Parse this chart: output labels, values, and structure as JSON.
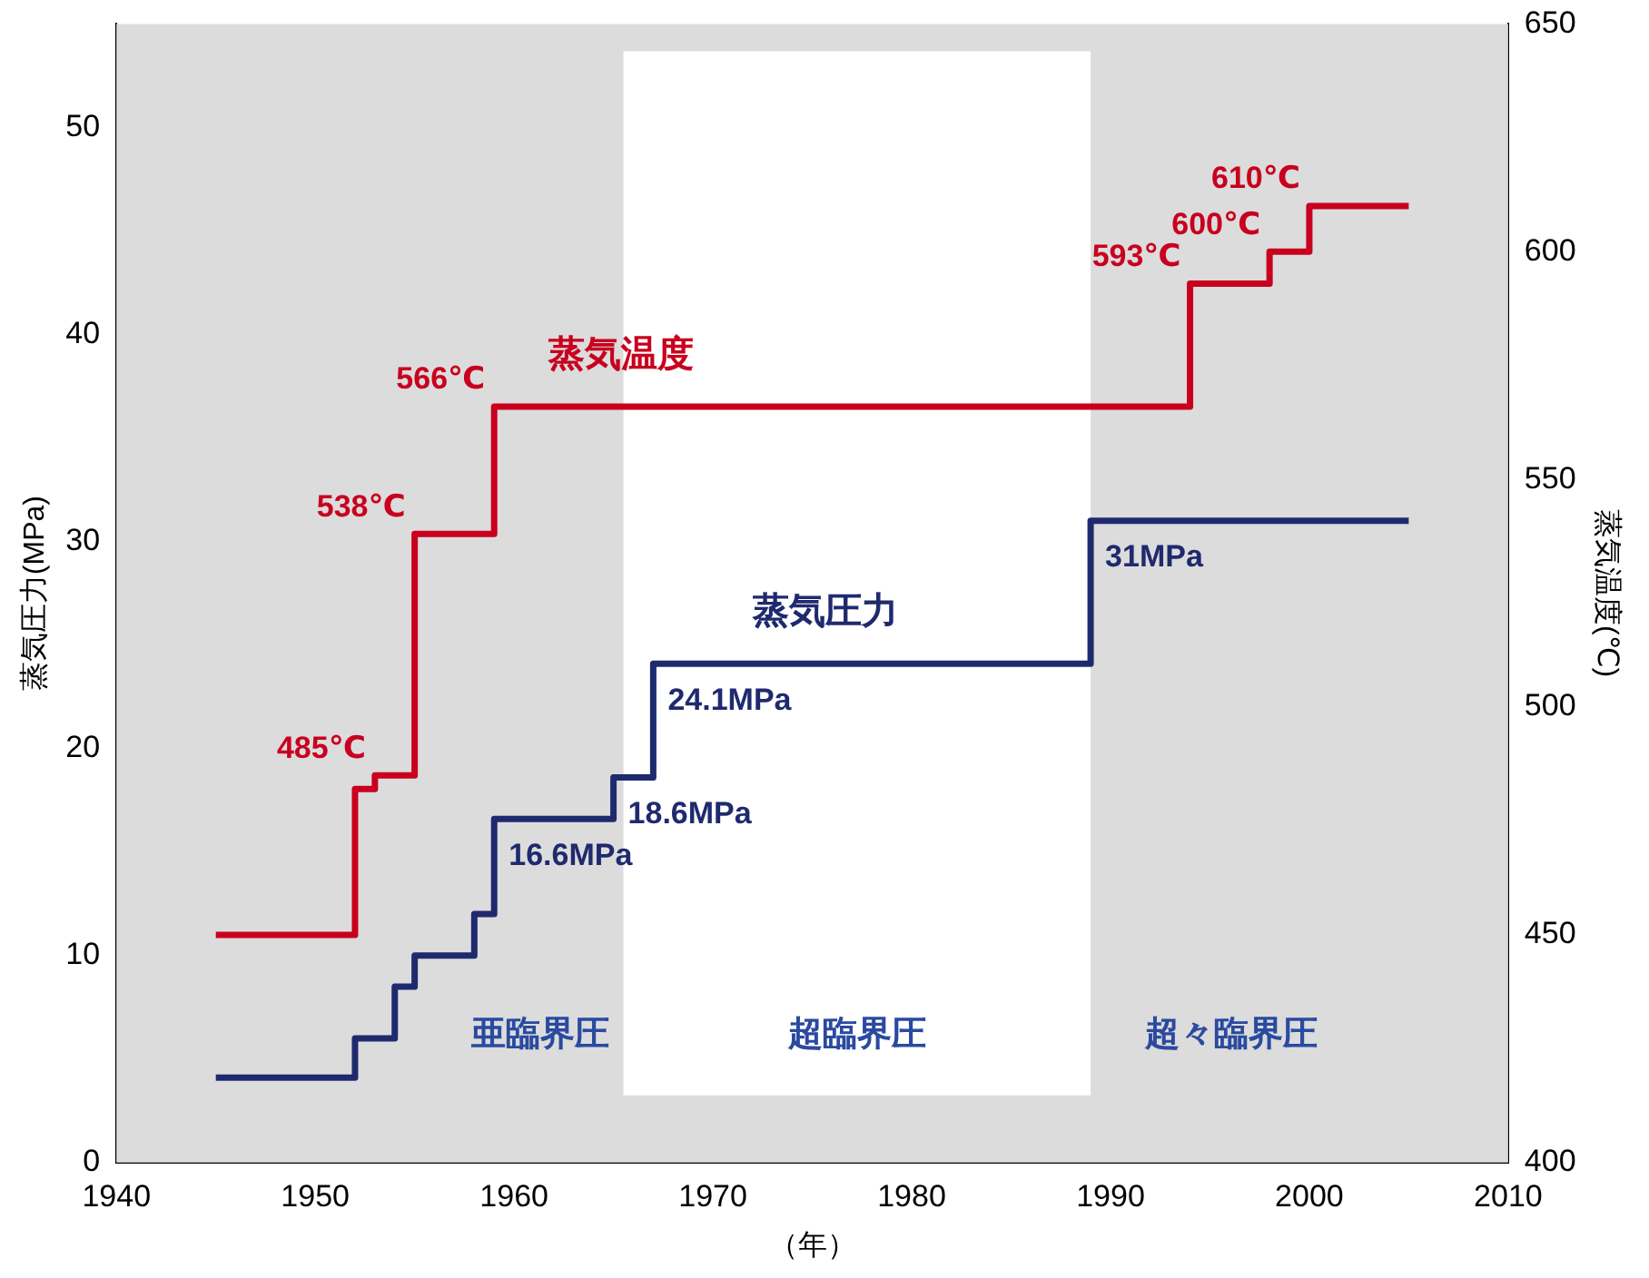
{
  "chart_data": {
    "type": "step",
    "xlabel": "（年）",
    "ylabel": "蒸気圧力(MPa)",
    "y2label": "蒸気温度(℃)",
    "xlim": [
      1940,
      2010
    ],
    "xticks": [
      1940,
      1950,
      1960,
      1970,
      1980,
      1990,
      2000,
      2010
    ],
    "ylim": [
      0,
      55
    ],
    "yticks": [
      0,
      10,
      20,
      30,
      40,
      50
    ],
    "y2lim": [
      400,
      650
    ],
    "y2ticks": [
      400,
      450,
      500,
      550,
      600,
      650
    ],
    "grid": false,
    "legend": false,
    "series": [
      {
        "name": "蒸気温度",
        "color": "#c8001e",
        "axis": "y2",
        "x": [
          1945,
          1952,
          1953,
          1955,
          1959,
          1994,
          1998,
          2000,
          2005
        ],
        "values": [
          450,
          482,
          485,
          538,
          566,
          593,
          600,
          610,
          610
        ],
        "value_labels": [
          null,
          null,
          "485℃",
          "538℃",
          "566℃",
          "593℃",
          "600℃",
          "610℃",
          null
        ]
      },
      {
        "name": "蒸気圧力",
        "color": "#1f2a6e",
        "x": [
          1945,
          1952,
          1954,
          1955,
          1958,
          1959,
          1965,
          1967,
          1989,
          2005
        ],
        "values": [
          4.1,
          6,
          8.5,
          10,
          12,
          16.6,
          18.6,
          24.1,
          31,
          31
        ],
        "value_labels": [
          null,
          null,
          null,
          null,
          null,
          "16.6MPa",
          "18.6MPa",
          "24.1MPa",
          "31MPa",
          null
        ]
      }
    ],
    "bands": [
      {
        "axis": "x",
        "from": 1965.5,
        "to": 1989,
        "label": "超臨界圧",
        "color": "#ffffff"
      }
    ],
    "annotations": [
      "亜臨界圧",
      "超々臨界圧"
    ]
  }
}
